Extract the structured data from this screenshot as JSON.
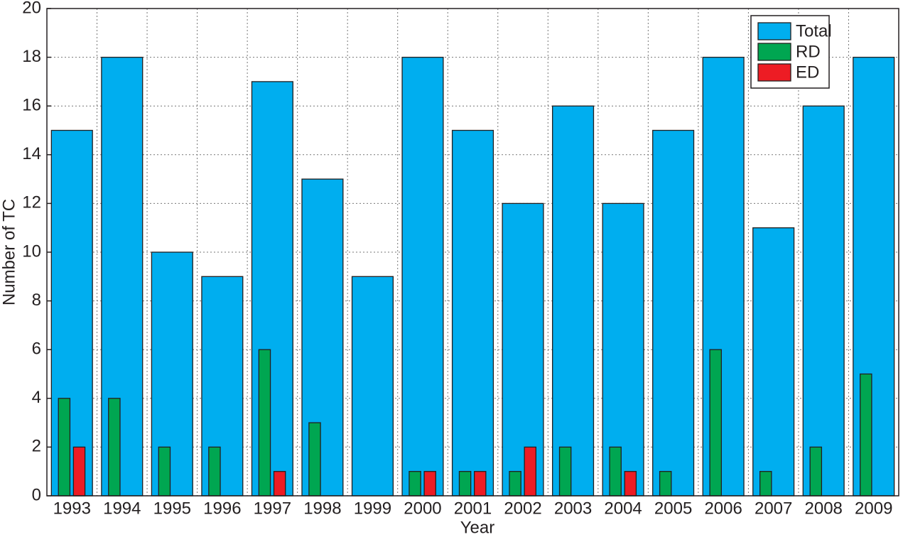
{
  "chart_data": {
    "type": "bar",
    "x_label": "Year",
    "y_label": "Number of TC",
    "categories": [
      "1993",
      "1994",
      "1995",
      "1996",
      "1997",
      "1998",
      "1999",
      "2000",
      "2001",
      "2002",
      "2003",
      "2004",
      "2005",
      "2006",
      "2007",
      "2008",
      "2009"
    ],
    "series": [
      {
        "name": "Total",
        "color": "#00aeef",
        "values": [
          15,
          18,
          10,
          9,
          17,
          13,
          9,
          18,
          15,
          12,
          16,
          12,
          15,
          18,
          11,
          16,
          18
        ]
      },
      {
        "name": "RD",
        "color": "#00a651",
        "values": [
          4,
          4,
          2,
          2,
          6,
          3,
          0,
          1,
          1,
          1,
          2,
          2,
          1,
          6,
          1,
          2,
          5
        ]
      },
      {
        "name": "ED",
        "color": "#ed1c24",
        "values": [
          2,
          0,
          0,
          0,
          1,
          0,
          0,
          1,
          1,
          2,
          0,
          1,
          0,
          0,
          0,
          0,
          0
        ]
      }
    ],
    "ylim": [
      0,
      20
    ],
    "yticks": [
      0,
      2,
      4,
      6,
      8,
      10,
      12,
      14,
      16,
      18,
      20
    ],
    "grid": true,
    "legend": "upper right"
  }
}
